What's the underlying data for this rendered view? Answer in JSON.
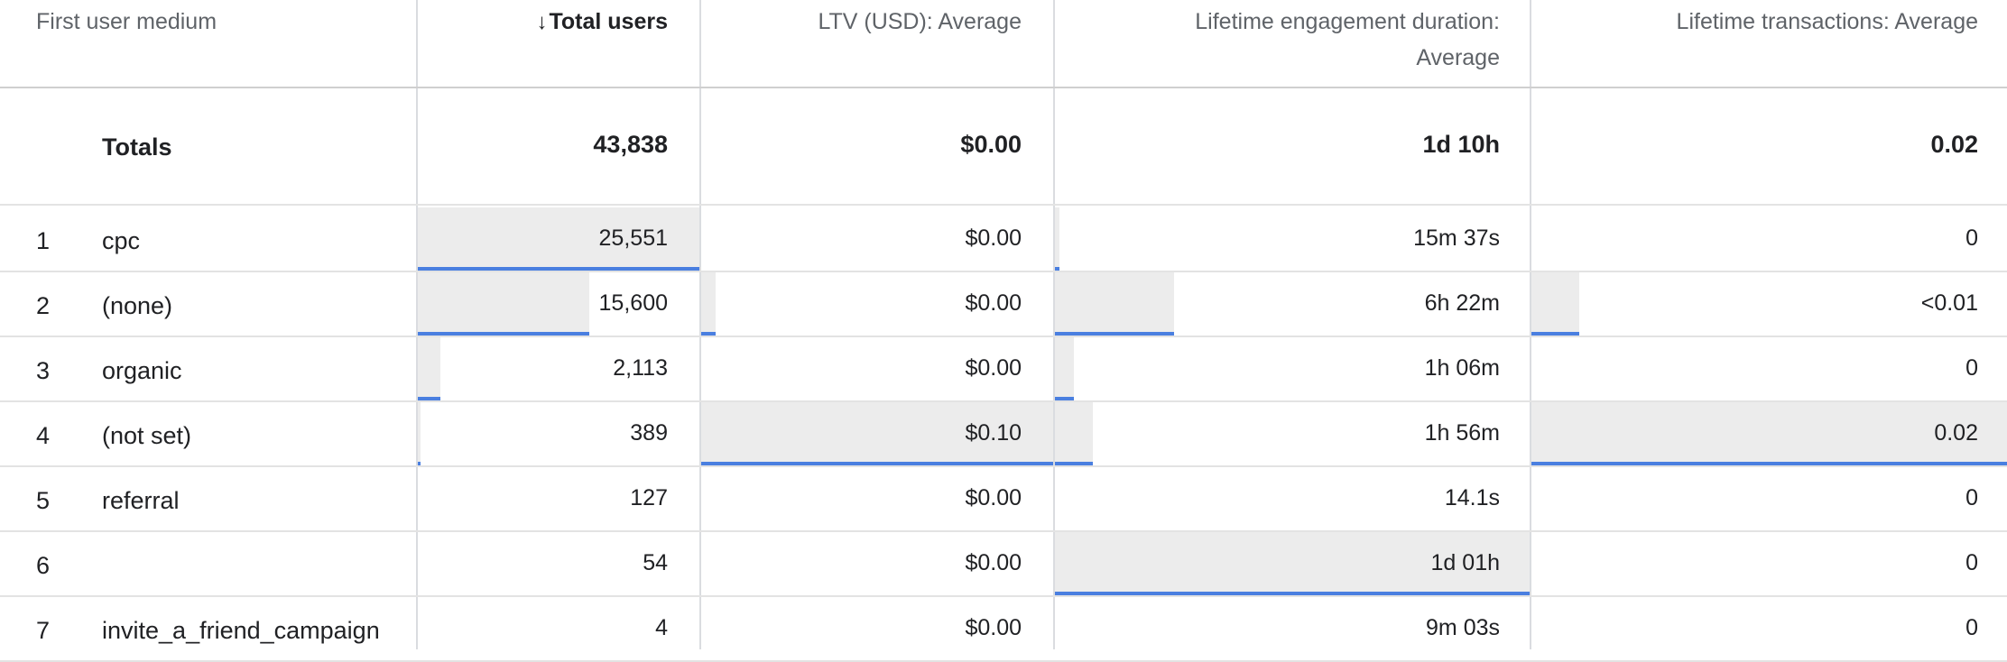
{
  "columns": {
    "dimension": "First user medium",
    "total_users": "Total users",
    "ltv": "LTV (USD): Average",
    "engagement_line1": "Lifetime engagement duration:",
    "engagement_line2": "Average",
    "transactions": "Lifetime transactions: Average",
    "sort_icon": "arrow-down-icon"
  },
  "totals": {
    "label": "Totals",
    "total_users": "43,838",
    "ltv": "$0.00",
    "engagement": "1d 10h",
    "transactions": "0.02"
  },
  "rows": [
    {
      "index": "1",
      "medium": "cpc",
      "total_users": "25,551",
      "ltv": "$0.00",
      "engagement": "15m 37s",
      "transactions": "0",
      "bars": {
        "total_users": 1.0,
        "ltv": 0.0,
        "engagement": 0.01,
        "transactions": 0.0
      }
    },
    {
      "index": "2",
      "medium": "(none)",
      "total_users": "15,600",
      "ltv": "$0.00",
      "engagement": "6h 22m",
      "transactions": "<0.01",
      "bars": {
        "total_users": 0.61,
        "ltv": 0.04,
        "engagement": 0.25,
        "transactions": 0.1
      }
    },
    {
      "index": "3",
      "medium": "organic",
      "total_users": "2,113",
      "ltv": "$0.00",
      "engagement": "1h 06m",
      "transactions": "0",
      "bars": {
        "total_users": 0.08,
        "ltv": 0.0,
        "engagement": 0.04,
        "transactions": 0.0
      }
    },
    {
      "index": "4",
      "medium": "(not set)",
      "total_users": "389",
      "ltv": "$0.10",
      "engagement": "1h 56m",
      "transactions": "0.02",
      "bars": {
        "total_users": 0.01,
        "ltv": 1.0,
        "engagement": 0.08,
        "transactions": 1.0
      }
    },
    {
      "index": "5",
      "medium": "referral",
      "total_users": "127",
      "ltv": "$0.00",
      "engagement": "14.1s",
      "transactions": "0",
      "bars": {
        "total_users": 0.0,
        "ltv": 0.0,
        "engagement": 0.0,
        "transactions": 0.0
      }
    },
    {
      "index": "6",
      "medium": "",
      "total_users": "54",
      "ltv": "$0.00",
      "engagement": "1d 01h",
      "transactions": "0",
      "bars": {
        "total_users": 0.0,
        "ltv": 0.0,
        "engagement": 1.0,
        "transactions": 0.0
      }
    },
    {
      "index": "7",
      "medium": "invite_a_friend_campaign",
      "total_users": "4",
      "ltv": "$0.00",
      "engagement": "9m 03s",
      "transactions": "0",
      "bars": {
        "total_users": 0.0,
        "ltv": 0.0,
        "engagement": 0.0,
        "transactions": 0.0
      }
    }
  ],
  "colors": {
    "bar_fill": "#ececec",
    "bar_line": "#4a7fe0",
    "grid": "#dadce0"
  }
}
